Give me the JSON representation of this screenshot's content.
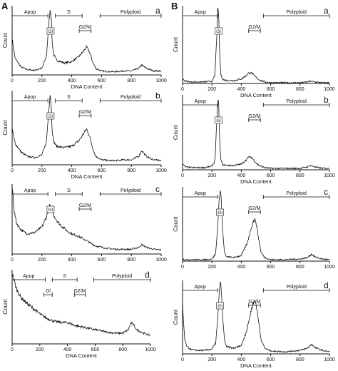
{
  "figure": {
    "panel_labels": [
      "A",
      "B"
    ]
  },
  "chart_data": [
    {
      "id": "A-a",
      "panel": "A",
      "sub_label": "a",
      "type": "line",
      "xlabel": "DNA Content",
      "ylabel": "Count",
      "xlim": [
        0,
        1000
      ],
      "xticks": [
        0,
        200,
        400,
        600,
        800,
        1000
      ],
      "gates": [
        {
          "label": "Apop",
          "from": 0,
          "to": 240
        },
        {
          "label": "S",
          "from": 290,
          "to": 470
        },
        {
          "label": "G2/M",
          "from": 450,
          "to": 530
        },
        {
          "label": "Polyploid",
          "from": 590,
          "to": 1000
        }
      ],
      "peak_labels": [
        {
          "label": "Gl",
          "x": 258
        }
      ],
      "series": [
        {
          "x": [
            0,
            20,
            60,
            100,
            150,
            200,
            230,
            245,
            255,
            262,
            268,
            280,
            300,
            350,
            400,
            450,
            480,
            500,
            520,
            540,
            560,
            600,
            650,
            700,
            750,
            800,
            850,
            870,
            900,
            950,
            1000
          ],
          "y": [
            0.55,
            0.25,
            0.12,
            0.08,
            0.07,
            0.1,
            0.28,
            0.72,
            1.0,
            0.9,
            0.5,
            0.3,
            0.22,
            0.18,
            0.2,
            0.28,
            0.36,
            0.42,
            0.34,
            0.2,
            0.1,
            0.06,
            0.05,
            0.05,
            0.06,
            0.06,
            0.1,
            0.15,
            0.1,
            0.06,
            0.06
          ]
        }
      ]
    },
    {
      "id": "A-b",
      "panel": "A",
      "sub_label": "b",
      "type": "line",
      "xlabel": "DNA Content",
      "ylabel": "Count",
      "xlim": [
        0,
        1000
      ],
      "xticks": [
        0,
        200,
        400,
        600,
        800,
        1000
      ],
      "gates": [
        {
          "label": "Apop",
          "from": 0,
          "to": 240
        },
        {
          "label": "S",
          "from": 290,
          "to": 470
        },
        {
          "label": "G2/M",
          "from": 450,
          "to": 530
        },
        {
          "label": "Polyploid",
          "from": 590,
          "to": 1000
        }
      ],
      "peak_labels": [
        {
          "label": "Gl",
          "x": 258
        }
      ],
      "series": [
        {
          "x": [
            0,
            20,
            60,
            100,
            150,
            200,
            230,
            245,
            255,
            262,
            268,
            280,
            300,
            350,
            400,
            450,
            480,
            500,
            520,
            540,
            560,
            600,
            650,
            700,
            750,
            800,
            850,
            870,
            900,
            950,
            1000
          ],
          "y": [
            0.5,
            0.3,
            0.18,
            0.12,
            0.1,
            0.14,
            0.32,
            0.75,
            1.0,
            0.85,
            0.5,
            0.32,
            0.26,
            0.24,
            0.26,
            0.34,
            0.44,
            0.5,
            0.4,
            0.24,
            0.12,
            0.07,
            0.06,
            0.06,
            0.07,
            0.07,
            0.12,
            0.2,
            0.12,
            0.07,
            0.06
          ]
        }
      ]
    },
    {
      "id": "A-c",
      "panel": "A",
      "sub_label": "c",
      "type": "line",
      "xlabel": "",
      "ylabel": "",
      "xlim": [
        0,
        1000
      ],
      "xticks": [
        0,
        200,
        400,
        600,
        800,
        1000
      ],
      "gates": [
        {
          "label": "Apop",
          "from": 0,
          "to": 240
        },
        {
          "label": "S",
          "from": 290,
          "to": 470
        },
        {
          "label": "G2/M",
          "from": 450,
          "to": 530
        },
        {
          "label": "Polyploid",
          "from": 590,
          "to": 1000
        }
      ],
      "peak_labels": [
        {
          "label": "Gl",
          "x": 258
        }
      ],
      "series": [
        {
          "x": [
            0,
            5,
            15,
            30,
            60,
            100,
            150,
            200,
            230,
            250,
            265,
            280,
            300,
            330,
            360,
            400,
            450,
            480,
            500,
            520,
            560,
            600,
            650,
            700,
            750,
            800,
            850,
            870,
            900,
            950,
            1000
          ],
          "y": [
            1.0,
            0.9,
            0.62,
            0.46,
            0.36,
            0.3,
            0.32,
            0.4,
            0.55,
            0.72,
            0.68,
            0.58,
            0.5,
            0.42,
            0.36,
            0.3,
            0.26,
            0.22,
            0.2,
            0.17,
            0.12,
            0.1,
            0.08,
            0.07,
            0.07,
            0.07,
            0.1,
            0.14,
            0.1,
            0.07,
            0.06
          ]
        }
      ]
    },
    {
      "id": "A-d",
      "panel": "A",
      "sub_label": "d",
      "type": "line",
      "xlabel": "DNA Content",
      "ylabel": "Count",
      "xlim": [
        0,
        1000
      ],
      "xticks": [
        0,
        200,
        400,
        600,
        800,
        1000
      ],
      "gates": [
        {
          "label": "Apop",
          "from": 0,
          "to": 240
        },
        {
          "label": "S",
          "from": 290,
          "to": 470
        },
        {
          "label": "G2/M",
          "from": 450,
          "to": 530
        },
        {
          "label": "Polyploid",
          "from": 590,
          "to": 1000
        },
        {
          "label": "Gl",
          "from": 230,
          "to": 290
        }
      ],
      "peak_labels": [],
      "series": [
        {
          "x": [
            0,
            10,
            30,
            60,
            100,
            150,
            200,
            250,
            300,
            350,
            400,
            450,
            500,
            550,
            600,
            650,
            700,
            750,
            800,
            840,
            860,
            880,
            900,
            950,
            1000
          ],
          "y": [
            1.0,
            0.92,
            0.78,
            0.66,
            0.58,
            0.5,
            0.42,
            0.36,
            0.32,
            0.3,
            0.3,
            0.26,
            0.24,
            0.22,
            0.2,
            0.18,
            0.16,
            0.15,
            0.15,
            0.2,
            0.3,
            0.26,
            0.2,
            0.15,
            0.12
          ]
        }
      ]
    },
    {
      "id": "B-a",
      "panel": "B",
      "sub_label": "a",
      "type": "line",
      "xlabel": "DNA Content",
      "ylabel": "Count",
      "xlim": [
        0,
        1000
      ],
      "xticks": [
        0,
        200,
        400,
        600,
        800,
        1000
      ],
      "gates": [
        {
          "label": "Apop",
          "from": 0,
          "to": 240
        },
        {
          "label": "G2/M",
          "from": 450,
          "to": 530
        },
        {
          "label": "Polyploid",
          "from": 550,
          "to": 1000
        }
      ],
      "peak_labels": [
        {
          "label": "Gl",
          "x": 245
        }
      ],
      "series": [
        {
          "x": [
            0,
            20,
            60,
            100,
            150,
            200,
            220,
            232,
            240,
            246,
            252,
            260,
            275,
            300,
            350,
            400,
            430,
            450,
            470,
            490,
            520,
            560,
            600,
            700,
            800,
            850,
            870,
            900,
            950,
            1000
          ],
          "y": [
            0.06,
            0.03,
            0.02,
            0.02,
            0.02,
            0.03,
            0.1,
            0.6,
            1.0,
            0.92,
            0.45,
            0.12,
            0.05,
            0.04,
            0.04,
            0.06,
            0.1,
            0.14,
            0.14,
            0.1,
            0.05,
            0.02,
            0.01,
            0.01,
            0.01,
            0.02,
            0.03,
            0.02,
            0.01,
            0.01
          ]
        }
      ]
    },
    {
      "id": "B-b",
      "panel": "B",
      "sub_label": "b",
      "type": "line",
      "xlabel": "DNA Content",
      "ylabel": "Count",
      "xlim": [
        0,
        1000
      ],
      "xticks": [
        0,
        200,
        400,
        600,
        800,
        1000
      ],
      "gates": [
        {
          "label": "Apop",
          "from": 0,
          "to": 240
        },
        {
          "label": "G2/M",
          "from": 450,
          "to": 530
        },
        {
          "label": "Polyploid",
          "from": 550,
          "to": 1000
        }
      ],
      "peak_labels": [
        {
          "label": "Gl",
          "x": 245
        }
      ],
      "series": [
        {
          "x": [
            0,
            20,
            60,
            100,
            150,
            200,
            220,
            232,
            240,
            246,
            252,
            260,
            275,
            300,
            350,
            400,
            430,
            450,
            470,
            490,
            520,
            560,
            600,
            700,
            800,
            850,
            870,
            900,
            950,
            1000
          ],
          "y": [
            0.08,
            0.04,
            0.03,
            0.03,
            0.03,
            0.05,
            0.12,
            0.6,
            1.0,
            0.9,
            0.45,
            0.14,
            0.07,
            0.06,
            0.06,
            0.08,
            0.13,
            0.18,
            0.17,
            0.12,
            0.06,
            0.03,
            0.02,
            0.02,
            0.02,
            0.04,
            0.06,
            0.04,
            0.02,
            0.02
          ]
        }
      ]
    },
    {
      "id": "B-c",
      "panel": "B",
      "sub_label": "c",
      "type": "line",
      "xlabel": "",
      "ylabel": "Count",
      "xlim": [
        0,
        1000
      ],
      "xticks": [
        0,
        200,
        400,
        600,
        800,
        1000
      ],
      "gates": [
        {
          "label": "Apop",
          "from": 0,
          "to": 240
        },
        {
          "label": "G2/M",
          "from": 450,
          "to": 530
        },
        {
          "label": "Polyploid",
          "from": 550,
          "to": 1000
        }
      ],
      "peak_labels": [
        {
          "label": "Gl",
          "x": 255
        }
      ],
      "series": [
        {
          "x": [
            0,
            20,
            60,
            100,
            150,
            200,
            225,
            240,
            252,
            258,
            264,
            272,
            285,
            300,
            350,
            400,
            440,
            465,
            480,
            490,
            500,
            515,
            535,
            560,
            600,
            700,
            800,
            850,
            880,
            900,
            950,
            1000
          ],
          "y": [
            0.03,
            0.02,
            0.02,
            0.02,
            0.02,
            0.03,
            0.1,
            0.5,
            0.95,
            1.0,
            0.85,
            0.45,
            0.12,
            0.06,
            0.05,
            0.08,
            0.25,
            0.45,
            0.55,
            0.58,
            0.55,
            0.35,
            0.12,
            0.05,
            0.02,
            0.02,
            0.03,
            0.05,
            0.1,
            0.06,
            0.03,
            0.02
          ]
        }
      ]
    },
    {
      "id": "B-d",
      "panel": "B",
      "sub_label": "d",
      "type": "line",
      "xlabel": "DNA Content",
      "ylabel": "Count",
      "xlim": [
        0,
        1000
      ],
      "xticks": [
        0,
        200,
        400,
        600,
        800,
        1000
      ],
      "gates": [
        {
          "label": "Apop",
          "from": 0,
          "to": 240
        },
        {
          "label": "G2/M",
          "from": 450,
          "to": 530
        },
        {
          "label": "Polyploid",
          "from": 550,
          "to": 1000
        }
      ],
      "peak_labels": [
        {
          "label": "Gl",
          "x": 255
        }
      ],
      "series": [
        {
          "x": [
            0,
            5,
            15,
            30,
            60,
            100,
            150,
            200,
            225,
            240,
            252,
            258,
            264,
            272,
            285,
            300,
            350,
            400,
            440,
            465,
            480,
            490,
            500,
            515,
            535,
            560,
            600,
            700,
            800,
            850,
            880,
            900,
            950,
            1000
          ],
          "y": [
            0.75,
            0.5,
            0.2,
            0.1,
            0.06,
            0.05,
            0.05,
            0.07,
            0.15,
            0.5,
            0.95,
            1.0,
            0.9,
            0.55,
            0.2,
            0.1,
            0.08,
            0.12,
            0.35,
            0.6,
            0.72,
            0.75,
            0.72,
            0.5,
            0.2,
            0.08,
            0.04,
            0.03,
            0.05,
            0.08,
            0.14,
            0.09,
            0.05,
            0.03
          ]
        }
      ]
    }
  ]
}
